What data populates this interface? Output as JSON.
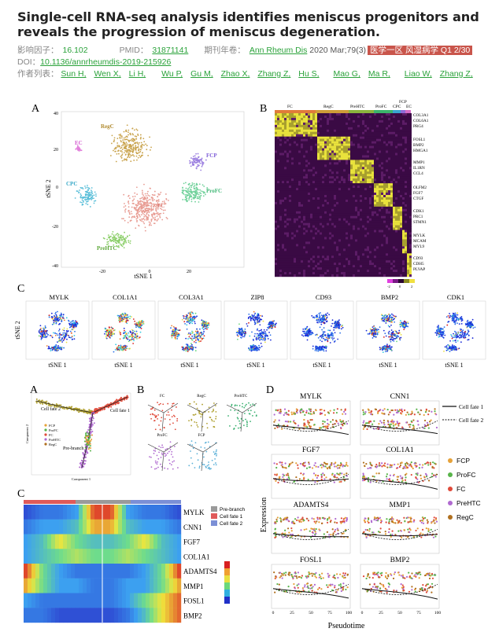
{
  "paper": {
    "title": "Single-cell RNA-seq analysis identifies meniscus progenitors and reveals the progression of meniscus degeneration.",
    "impact_label": "影响因子：",
    "impact_value": "16.102",
    "pmid_label": "PMID：",
    "pmid_value": "31871141",
    "journal_label": "期刊年卷：",
    "journal_name": "Ann Rheum Dis",
    "journal_year": "2020 Mar;79(3)",
    "badge": "医学一区 风湿病学 Q1 2/30",
    "doi_label": "DOI：",
    "doi_value": "10.1136/annrheumdis-2019-215926",
    "authors_label": "作者列表：",
    "authors": [
      "Sun H,",
      "Wen X,",
      "Li H,",
      "Wu P,",
      "Gu M,",
      "Zhao X,",
      "Zhang Z,",
      "Hu S,",
      "Mao G,",
      "Ma R,",
      "Liao W,",
      "Zhang Z,"
    ]
  },
  "figure1": {
    "panel_a": {
      "letter": "A",
      "xlabel": "tSNE 1",
      "ylabel": "tSNE 2",
      "xticks": [
        "-20",
        "0",
        "20"
      ],
      "yticks": [
        "40",
        "20",
        "0",
        "-20",
        "-40"
      ],
      "cluster_labels": [
        "RegC",
        "EC",
        "FCP",
        "CPC",
        "ProFC",
        "FC",
        "PreHTC"
      ],
      "colors": {
        "RegC": "#c9a34c",
        "EC": "#e07ad9",
        "FCP": "#9b7fe0",
        "CPC": "#5bbfd9",
        "ProFC": "#6fd19a",
        "FC": "#e89c93",
        "PreHTC": "#8ccf6a"
      }
    },
    "panel_b": {
      "letter": "B",
      "groups": [
        "FC",
        "RegC",
        "PreHTC",
        "ProFC",
        "CPC",
        "FCP",
        "EC"
      ],
      "group_colors": [
        "#e07b3a",
        "#cf9c38",
        "#8ab33d",
        "#3bb36b",
        "#3aa3cf",
        "#8e6bd8",
        "#d56bc7"
      ],
      "genes": [
        "COL3A1",
        "COL6A1",
        "PRG4",
        "FOSL1",
        "BMP2",
        "HMGA1",
        "MMP1",
        "IL1RN",
        "CCL4",
        "OLFM2",
        "FGF7",
        "CTGF",
        "CDK1",
        "PRC1",
        "STMN1",
        "MYLK",
        "MCAM",
        "MYL9",
        "CD93",
        "CDH5",
        "PLVAP"
      ],
      "legend_ticks": [
        "-2",
        "0",
        "2"
      ]
    },
    "panel_c": {
      "letter": "C",
      "genes": [
        "MYLK",
        "COL1A1",
        "COL3A1",
        "ZIP8",
        "CD93",
        "BMP2",
        "CDK1"
      ],
      "xlabel": "tSNE 1",
      "ylabel": "tSNE 2"
    }
  },
  "figure2": {
    "panel_a": {
      "letter": "A",
      "labels": [
        "Cell fate 2",
        "Cell fate 1",
        "Pre-branch"
      ],
      "legend": [
        "FCP",
        "ProFC",
        "FC",
        "PreHTC",
        "RegC"
      ],
      "legend_colors": [
        "#e6a23a",
        "#58b44a",
        "#e04a3a",
        "#b06ad0",
        "#b0701f"
      ],
      "xlabel": "Component 1",
      "ylabel": "Component 2"
    },
    "panel_b": {
      "letter": "B",
      "titles": [
        "FC",
        "RegC",
        "PreHTC",
        "ProFC",
        "FCP"
      ]
    },
    "panel_c": {
      "letter": "C",
      "genes": [
        "MYLK",
        "CNN1",
        "FGF7",
        "COL1A1",
        "ADAMTS4",
        "MMP1",
        "FOSL1",
        "BMP2"
      ],
      "legend": [
        "Pre-branch",
        "Cell fate 1",
        "Cell fate 2"
      ],
      "legend_colors": [
        "#9a9a9a",
        "#e05a5a",
        "#7b8fd6"
      ]
    },
    "panel_d": {
      "letter": "D",
      "genes": [
        "MYLK",
        "CNN1",
        "FGF7",
        "COL1A1",
        "ADAMTS4",
        "MMP1",
        "FOSL1",
        "BMP2"
      ],
      "xlabel": "Pseudotime",
      "ylabel": "Expression",
      "xticks": [
        "0",
        "25",
        "50",
        "75",
        "100"
      ],
      "fate_legend": [
        "Cell fate 1",
        "Cell fate 2"
      ],
      "cell_legend": [
        "FCP",
        "ProFC",
        "FC",
        "PreHTC",
        "RegC"
      ],
      "cell_colors": [
        "#e6a23a",
        "#58b44a",
        "#e04a3a",
        "#b06ad0",
        "#b0701f"
      ]
    }
  }
}
